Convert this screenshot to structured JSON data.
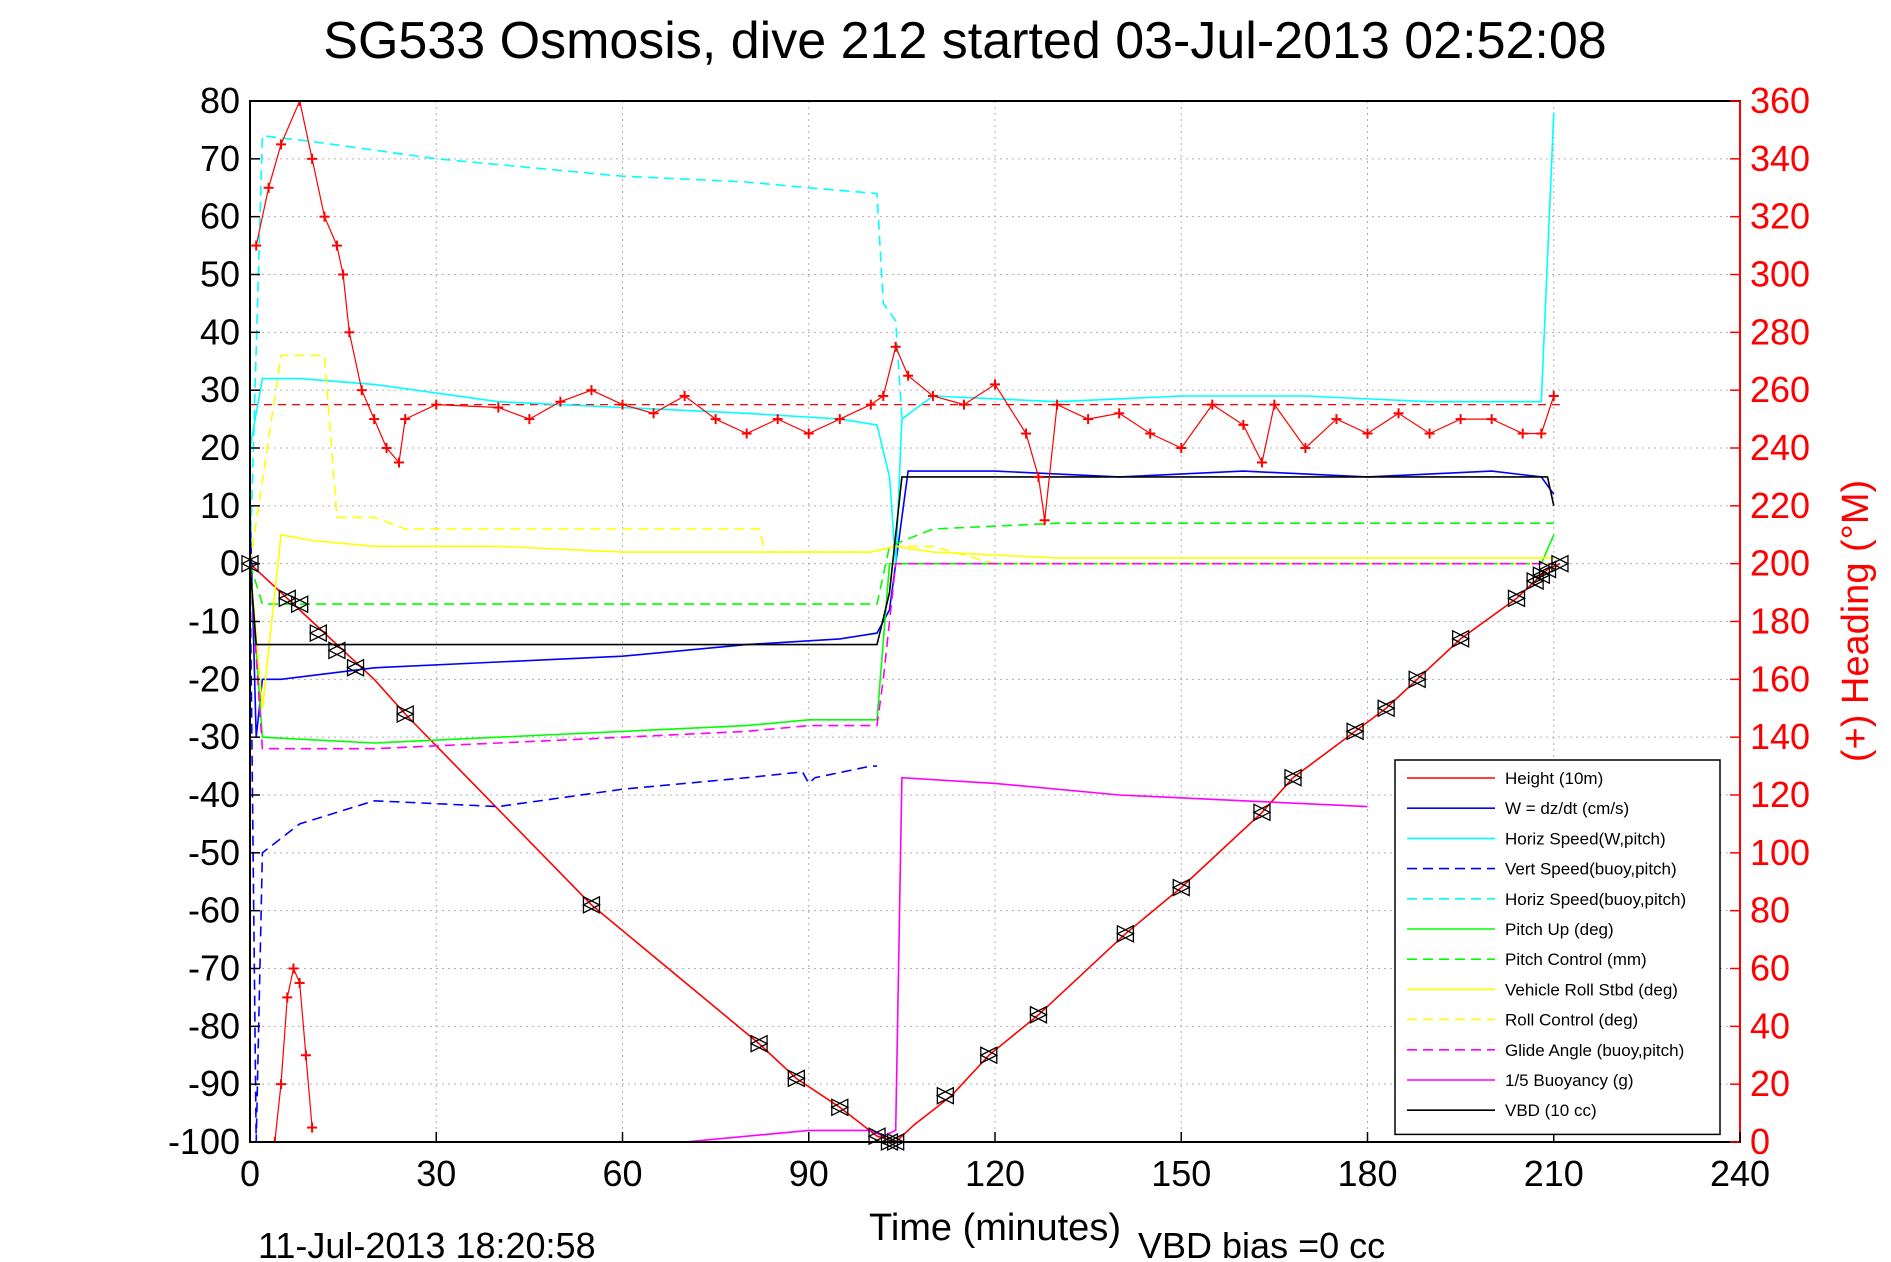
{
  "chart_data": {
    "type": "line",
    "title": "SG533 Osmosis, dive 212 started 03-Jul-2013 02:52:08",
    "xlabel": "Time (minutes)",
    "ylabel_right": "(+) Heading (°M)",
    "xlim": [
      0,
      240
    ],
    "ylim": [
      -100,
      80
    ],
    "y2lim": [
      0,
      360
    ],
    "xticks": [
      "0",
      "30",
      "60",
      "90",
      "120",
      "150",
      "180",
      "210",
      "240"
    ],
    "yticks": [
      "80",
      "70",
      "60",
      "50",
      "40",
      "30",
      "20",
      "10",
      "0",
      "-10",
      "-20",
      "-30",
      "-40",
      "-50",
      "-60",
      "-70",
      "-80",
      "-90",
      "-100"
    ],
    "y2ticks": [
      "360",
      "340",
      "320",
      "300",
      "280",
      "260",
      "240",
      "220",
      "200",
      "180",
      "160",
      "140",
      "120",
      "100",
      "80",
      "60",
      "40",
      "20",
      "0"
    ],
    "grid": true,
    "legend_position": "bottom-right",
    "footer_date": "11-Jul-2013 18:20:58",
    "footer_bias": "VBD bias =0 cc",
    "colors": {
      "height": "#ff0000",
      "w": "#0000ff",
      "horiz_speed": "#00ffff",
      "vert_speed_buoy": "#0000ff",
      "horiz_speed_buoy": "#00ffff",
      "pitch_up": "#00ff00",
      "pitch_control": "#00ff00",
      "roll": "#ffff00",
      "roll_control": "#ffff00",
      "glide_angle": "#ff00ff",
      "buoyancy": "#ff00ff",
      "vbd": "#000000",
      "heading": "#ff0000"
    },
    "series": [
      {
        "key": "height",
        "name": "Height (10m)",
        "color": "#ff0000",
        "dash": false,
        "points": [
          [
            0,
            0
          ],
          [
            5,
            -5
          ],
          [
            10,
            -10
          ],
          [
            15,
            -15
          ],
          [
            20,
            -20
          ],
          [
            25,
            -26
          ],
          [
            55,
            -59
          ],
          [
            82,
            -83
          ],
          [
            88,
            -89
          ],
          [
            95,
            -94
          ],
          [
            101,
            -99
          ],
          [
            104,
            -100
          ],
          [
            107,
            -97
          ],
          [
            113,
            -92
          ],
          [
            119,
            -85
          ],
          [
            127,
            -78
          ],
          [
            141,
            -64
          ],
          [
            150,
            -56
          ],
          [
            163,
            -43
          ],
          [
            168,
            -37
          ],
          [
            178,
            -29
          ],
          [
            183,
            -25
          ],
          [
            188,
            -20
          ],
          [
            195,
            -13
          ],
          [
            204,
            -6
          ],
          [
            207,
            -3
          ],
          [
            209,
            -1
          ],
          [
            211,
            0
          ]
        ]
      },
      {
        "key": "w",
        "name": "W = dz/dt (cm/s)",
        "color": "#0000ff",
        "dash": false,
        "points": [
          [
            0,
            10
          ],
          [
            1,
            -30
          ],
          [
            2,
            -20
          ],
          [
            5,
            -20
          ],
          [
            20,
            -18
          ],
          [
            40,
            -17
          ],
          [
            60,
            -16
          ],
          [
            80,
            -14
          ],
          [
            95,
            -13
          ],
          [
            101,
            -12
          ],
          [
            103,
            -8
          ],
          [
            104,
            0
          ],
          [
            106,
            16
          ],
          [
            120,
            16
          ],
          [
            140,
            15
          ],
          [
            160,
            16
          ],
          [
            180,
            15
          ],
          [
            200,
            16
          ],
          [
            208,
            15
          ],
          [
            210,
            12
          ]
        ]
      },
      {
        "key": "horiz_speed",
        "name": "Horiz Speed(W,pitch)",
        "color": "#00ffff",
        "dash": false,
        "points": [
          [
            0,
            20
          ],
          [
            2,
            32
          ],
          [
            8,
            32
          ],
          [
            20,
            31
          ],
          [
            40,
            28
          ],
          [
            60,
            27
          ],
          [
            80,
            26
          ],
          [
            95,
            25
          ],
          [
            101,
            24
          ],
          [
            103,
            15
          ],
          [
            104,
            0
          ],
          [
            105,
            25
          ],
          [
            110,
            29
          ],
          [
            130,
            28
          ],
          [
            150,
            29
          ],
          [
            170,
            29
          ],
          [
            190,
            28
          ],
          [
            208,
            28
          ],
          [
            210,
            78
          ]
        ]
      },
      {
        "key": "vert_speed_buoy",
        "name": "Vert Speed(buoy,pitch)",
        "color": "#0000ff",
        "dash": true,
        "points": [
          [
            0,
            0
          ],
          [
            1,
            -100
          ],
          [
            2,
            -50
          ],
          [
            8,
            -45
          ],
          [
            20,
            -41
          ],
          [
            40,
            -42
          ],
          [
            60,
            -39
          ],
          [
            80,
            -37
          ],
          [
            89,
            -36
          ],
          [
            90,
            -38
          ],
          [
            91,
            -37
          ],
          [
            100,
            -35
          ],
          [
            101,
            -35
          ]
        ]
      },
      {
        "key": "horiz_speed_buoy",
        "name": "Horiz Speed(buoy,pitch)",
        "color": "#00ffff",
        "dash": true,
        "points": [
          [
            0,
            0
          ],
          [
            2,
            74
          ],
          [
            10,
            73
          ],
          [
            30,
            70
          ],
          [
            60,
            67
          ],
          [
            80,
            66
          ],
          [
            90,
            65
          ],
          [
            101,
            64
          ],
          [
            102,
            45
          ],
          [
            104,
            42
          ],
          [
            105,
            25
          ]
        ]
      },
      {
        "key": "pitch_up",
        "name": "Pitch Up (deg)",
        "color": "#00ff00",
        "dash": false,
        "points": [
          [
            0,
            0
          ],
          [
            2,
            -30
          ],
          [
            20,
            -31
          ],
          [
            40,
            -30
          ],
          [
            60,
            -29
          ],
          [
            80,
            -28
          ],
          [
            90,
            -27
          ],
          [
            101,
            -27
          ],
          [
            103,
            0
          ],
          [
            105,
            0
          ],
          [
            120,
            0
          ],
          [
            150,
            0
          ],
          [
            180,
            0
          ],
          [
            208,
            0
          ],
          [
            210,
            5
          ]
        ]
      },
      {
        "key": "pitch_control",
        "name": "Pitch Control (mm)",
        "color": "#00ff00",
        "dash": true,
        "points": [
          [
            0,
            0
          ],
          [
            2,
            -7
          ],
          [
            40,
            -7
          ],
          [
            80,
            -7
          ],
          [
            101,
            -7
          ],
          [
            103,
            3
          ],
          [
            110,
            6
          ],
          [
            130,
            7
          ],
          [
            160,
            7
          ],
          [
            190,
            7
          ],
          [
            210,
            7
          ]
        ]
      },
      {
        "key": "roll",
        "name": "Vehicle Roll Stbd (deg)",
        "color": "#ffff00",
        "dash": false,
        "points": [
          [
            0,
            0
          ],
          [
            2,
            -25
          ],
          [
            5,
            5
          ],
          [
            10,
            4
          ],
          [
            20,
            3
          ],
          [
            40,
            3
          ],
          [
            60,
            2
          ],
          [
            80,
            2
          ],
          [
            100,
            2
          ],
          [
            104,
            3
          ],
          [
            110,
            2
          ],
          [
            130,
            1
          ],
          [
            150,
            1
          ],
          [
            170,
            1
          ],
          [
            190,
            1
          ],
          [
            210,
            1
          ]
        ]
      },
      {
        "key": "roll_control",
        "name": "Roll Control (deg)",
        "color": "#ffff00",
        "dash": true,
        "points": [
          [
            0,
            0
          ],
          [
            5,
            36
          ],
          [
            12,
            36
          ],
          [
            14,
            8
          ],
          [
            20,
            8
          ],
          [
            25,
            6
          ],
          [
            60,
            6
          ],
          [
            82,
            6
          ],
          [
            83,
            2
          ],
          [
            100,
            2
          ],
          [
            104,
            3
          ],
          [
            110,
            3
          ],
          [
            120,
            0
          ],
          [
            150,
            0
          ],
          [
            180,
            0
          ],
          [
            210,
            0
          ]
        ]
      },
      {
        "key": "glide_angle",
        "name": "Glide Angle (buoy,pitch)",
        "color": "#ff00ff",
        "dash": true,
        "points": [
          [
            0,
            0
          ],
          [
            2,
            -32
          ],
          [
            20,
            -32
          ],
          [
            40,
            -31
          ],
          [
            60,
            -30
          ],
          [
            80,
            -29
          ],
          [
            90,
            -28
          ],
          [
            101,
            -28
          ],
          [
            102,
            -20
          ],
          [
            104,
            0
          ],
          [
            120,
            0
          ],
          [
            150,
            0
          ],
          [
            180,
            0
          ],
          [
            210,
            0
          ]
        ]
      },
      {
        "key": "buoyancy",
        "name": "1/5 Buoyancy (g)",
        "color": "#ff00ff",
        "dash": false,
        "points": [
          [
            70,
            -100
          ],
          [
            90,
            -98
          ],
          [
            100,
            -98
          ],
          [
            102,
            -99
          ],
          [
            104,
            -98
          ],
          [
            105,
            -37
          ],
          [
            120,
            -38
          ],
          [
            140,
            -40
          ],
          [
            160,
            -41
          ],
          [
            180,
            -42
          ]
        ]
      },
      {
        "key": "vbd",
        "name": "VBD (10 cc)",
        "color": "#000000",
        "dash": false,
        "points": [
          [
            0,
            0
          ],
          [
            1,
            -14
          ],
          [
            20,
            -14
          ],
          [
            60,
            -14
          ],
          [
            90,
            -14
          ],
          [
            101,
            -14
          ],
          [
            103,
            -5
          ],
          [
            105,
            15
          ],
          [
            120,
            15
          ],
          [
            150,
            15
          ],
          [
            180,
            15
          ],
          [
            209,
            15
          ],
          [
            210,
            10
          ]
        ]
      },
      {
        "key": "heading",
        "name": "(+) Heading",
        "color": "#ff0000",
        "dash": false,
        "axis": "right",
        "marker": "+",
        "points": [
          [
            1,
            310
          ],
          [
            3,
            330
          ],
          [
            5,
            345
          ],
          [
            8,
            360
          ],
          [
            10,
            340
          ],
          [
            12,
            320
          ],
          [
            14,
            310
          ],
          [
            15,
            300
          ],
          [
            16,
            280
          ],
          [
            18,
            260
          ],
          [
            20,
            250
          ],
          [
            22,
            240
          ],
          [
            24,
            235
          ],
          [
            25,
            250
          ],
          [
            30,
            255
          ],
          [
            40,
            254
          ],
          [
            45,
            250
          ],
          [
            50,
            256
          ],
          [
            55,
            260
          ],
          [
            60,
            255
          ],
          [
            65,
            252
          ],
          [
            70,
            258
          ],
          [
            75,
            250
          ],
          [
            80,
            245
          ],
          [
            85,
            250
          ],
          [
            90,
            245
          ],
          [
            95,
            250
          ],
          [
            100,
            255
          ],
          [
            102,
            258
          ],
          [
            104,
            275
          ],
          [
            106,
            265
          ],
          [
            110,
            258
          ],
          [
            115,
            255
          ],
          [
            120,
            262
          ],
          [
            125,
            245
          ],
          [
            127,
            230
          ],
          [
            128,
            215
          ],
          [
            130,
            255
          ],
          [
            135,
            250
          ],
          [
            140,
            252
          ],
          [
            145,
            245
          ],
          [
            150,
            240
          ],
          [
            155,
            255
          ],
          [
            160,
            248
          ],
          [
            163,
            235
          ],
          [
            165,
            255
          ],
          [
            170,
            240
          ],
          [
            175,
            250
          ],
          [
            180,
            245
          ],
          [
            185,
            252
          ],
          [
            190,
            245
          ],
          [
            195,
            250
          ],
          [
            200,
            250
          ],
          [
            205,
            245
          ],
          [
            208,
            245
          ],
          [
            210,
            258
          ]
        ]
      },
      {
        "key": "heading_low",
        "name": "(+) Heading",
        "color": "#ff0000",
        "dash": false,
        "axis": "right",
        "marker": "+",
        "points": [
          [
            4,
            0
          ],
          [
            5,
            20
          ],
          [
            6,
            50
          ],
          [
            7,
            60
          ],
          [
            8,
            55
          ],
          [
            9,
            30
          ],
          [
            10,
            5
          ]
        ]
      }
    ],
    "heading_ref": 255,
    "height_markers": [
      [
        0,
        0
      ],
      [
        6,
        -6
      ],
      [
        8,
        -7
      ],
      [
        11,
        -12
      ],
      [
        14,
        -15
      ],
      [
        17,
        -18
      ],
      [
        25,
        -26
      ],
      [
        55,
        -59
      ],
      [
        82,
        -83
      ],
      [
        88,
        -89
      ],
      [
        95,
        -94
      ],
      [
        101,
        -99
      ],
      [
        103,
        -100
      ],
      [
        104,
        -100
      ],
      [
        112,
        -92
      ],
      [
        119,
        -85
      ],
      [
        127,
        -78
      ],
      [
        141,
        -64
      ],
      [
        150,
        -56
      ],
      [
        163,
        -43
      ],
      [
        168,
        -37
      ],
      [
        178,
        -29
      ],
      [
        183,
        -25
      ],
      [
        188,
        -20
      ],
      [
        195,
        -13
      ],
      [
        204,
        -6
      ],
      [
        207,
        -3
      ],
      [
        208,
        -2
      ],
      [
        209,
        -1
      ],
      [
        211,
        0
      ]
    ]
  }
}
